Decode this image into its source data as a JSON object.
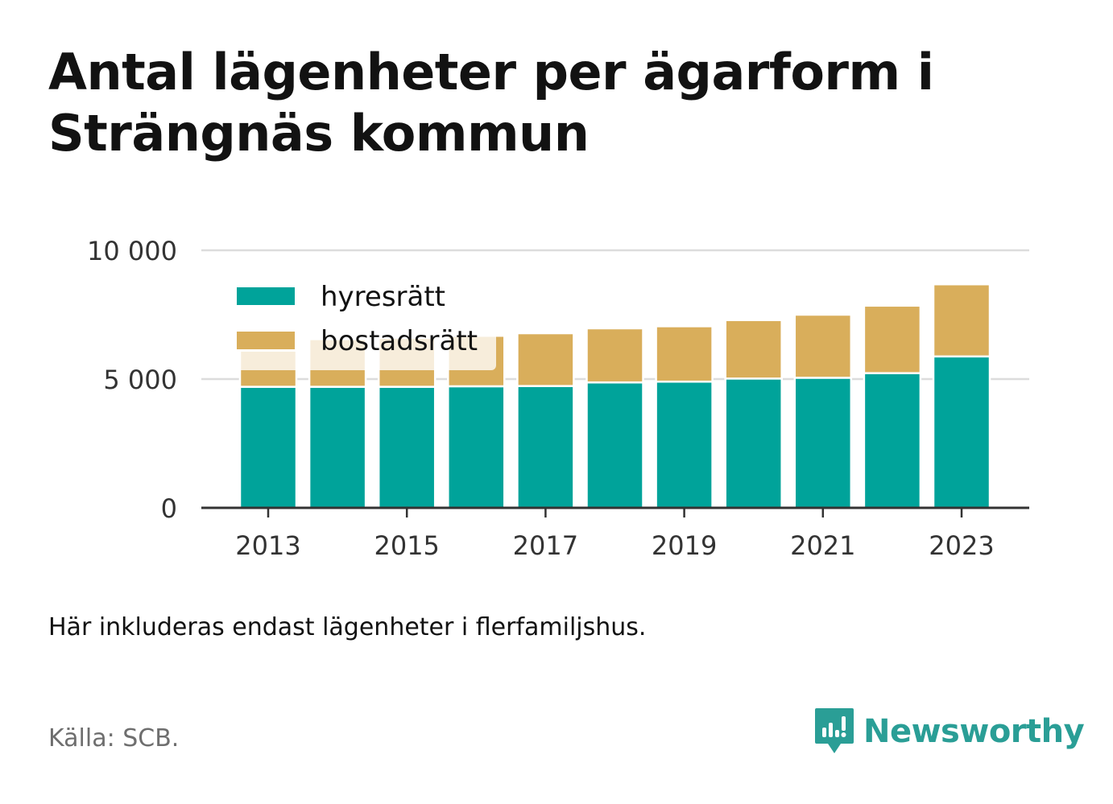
{
  "title": "Antal lägenheter per ägarform i Strängnäs kommun",
  "note": "Här inkluderas endast lägenheter i flerfamiljshus.",
  "source": "Källa: SCB.",
  "brand": {
    "name": "Newsworthy",
    "icon": "newsworthy-logo-icon",
    "color": "#2a9e96"
  },
  "colors": {
    "hyresratt": "#00a39a",
    "bostadsratt": "#d9ae5b",
    "grid": "#dcdcdc",
    "axis": "#333333"
  },
  "chart_data": {
    "type": "bar",
    "stacked": true,
    "categories": [
      "2013",
      "2014",
      "2015",
      "2016",
      "2017",
      "2018",
      "2019",
      "2020",
      "2021",
      "2022",
      "2023"
    ],
    "x_tick_labels": [
      "2013",
      "2015",
      "2017",
      "2019",
      "2021",
      "2023"
    ],
    "series": [
      {
        "name": "hyresrätt",
        "values": [
          4700,
          4700,
          4700,
          4720,
          4730,
          4870,
          4900,
          5020,
          5050,
          5230,
          5880
        ]
      },
      {
        "name": "bostadsrätt",
        "values": [
          1400,
          1850,
          1900,
          1960,
          2050,
          2100,
          2150,
          2270,
          2450,
          2620,
          2800
        ]
      }
    ],
    "ylim": [
      0,
      10000
    ],
    "y_ticks": [
      0,
      5000,
      10000
    ],
    "y_tick_labels": [
      "0",
      "5 000",
      "10 000"
    ],
    "grid": true,
    "legend_position": "top-left"
  }
}
